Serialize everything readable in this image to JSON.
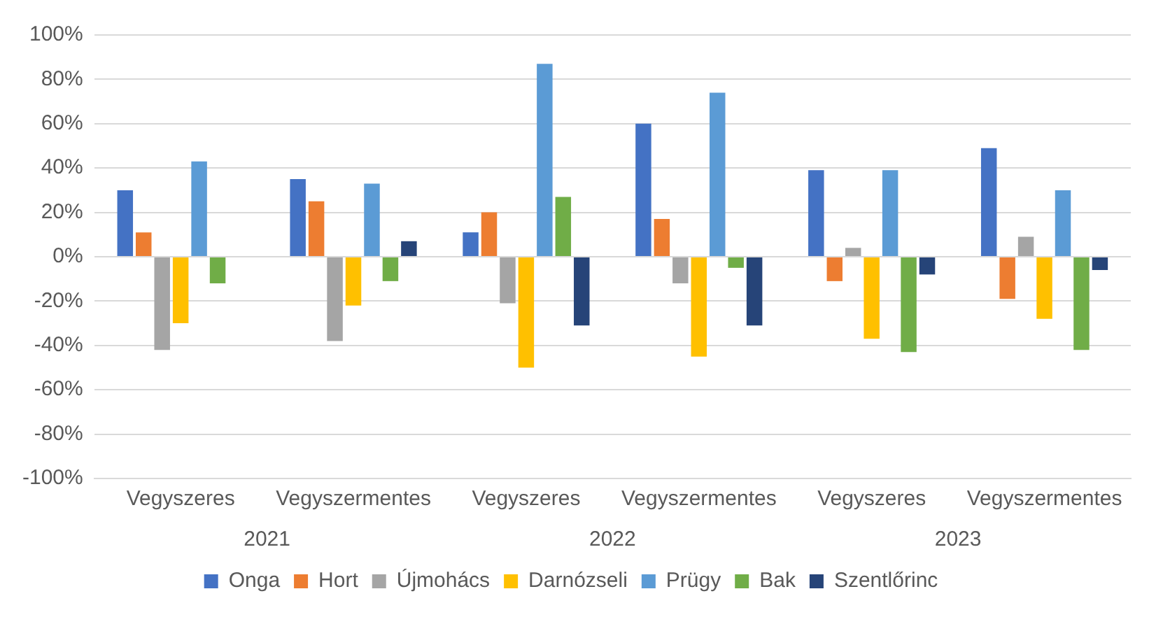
{
  "chart_data": {
    "type": "bar",
    "categories": [
      "Vegyszeres",
      "Vegyszermentes",
      "Vegyszeres",
      "Vegyszermentes",
      "Vegyszeres",
      "Vegyszermentes"
    ],
    "annotations": [
      "2021",
      "2022",
      "2023"
    ],
    "series": [
      {
        "name": "Onga",
        "color": "#4472c4",
        "values": [
          30,
          35,
          11,
          60,
          39,
          49
        ]
      },
      {
        "name": "Hort",
        "color": "#ed7d31",
        "values": [
          11,
          25,
          20,
          17,
          -11,
          -19
        ]
      },
      {
        "name": "Újmohács",
        "color": "#a5a5a5",
        "values": [
          -42,
          -38,
          -21,
          -12,
          4,
          9
        ]
      },
      {
        "name": "Darnózseli",
        "color": "#ffc000",
        "values": [
          -30,
          -22,
          -50,
          -45,
          -37,
          -28
        ]
      },
      {
        "name": "Prügy",
        "color": "#5b9bd5",
        "values": [
          43,
          33,
          87,
          74,
          39,
          30
        ]
      },
      {
        "name": "Bak",
        "color": "#70ad47",
        "values": [
          -12,
          -11,
          27,
          -5,
          -43,
          -42
        ]
      },
      {
        "name": "Szentlőrinc",
        "color": "#264478",
        "values": [
          0,
          7,
          -31,
          -31,
          -8,
          -6
        ]
      }
    ],
    "ylim": [
      -100,
      100
    ],
    "yticks": [
      {
        "value": -100,
        "label": "-100%"
      },
      {
        "value": -80,
        "label": "-80%"
      },
      {
        "value": -60,
        "label": "-60%"
      },
      {
        "value": -40,
        "label": "-40%"
      },
      {
        "value": -20,
        "label": "-20%"
      },
      {
        "value": 0,
        "label": "0%"
      },
      {
        "value": 20,
        "label": "20%"
      },
      {
        "value": 40,
        "label": "40%"
      },
      {
        "value": 60,
        "label": "60%"
      },
      {
        "value": 80,
        "label": "80%"
      },
      {
        "value": 100,
        "label": "100%"
      }
    ],
    "grid": "y",
    "legend": "bottom"
  }
}
